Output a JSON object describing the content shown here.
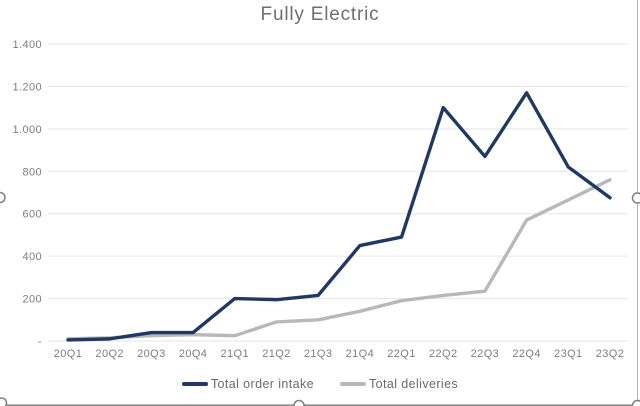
{
  "chart_data": {
    "type": "line",
    "title": "Fully Electric",
    "categories": [
      "20Q1",
      "20Q2",
      "20Q3",
      "20Q4",
      "21Q1",
      "21Q2",
      "21Q3",
      "21Q4",
      "22Q1",
      "22Q2",
      "22Q3",
      "22Q4",
      "23Q1",
      "23Q2"
    ],
    "series": [
      {
        "name": "Total order intake",
        "color": "#1f3864",
        "values": [
          5,
          10,
          40,
          40,
          200,
          195,
          215,
          450,
          490,
          1100,
          870,
          1170,
          820,
          675
        ]
      },
      {
        "name": "Total deliveries",
        "color": "#b8b8b8",
        "values": [
          10,
          15,
          25,
          30,
          25,
          90,
          100,
          140,
          190,
          215,
          235,
          570,
          665,
          760
        ]
      }
    ],
    "y_axis": {
      "min": 0,
      "max": 1400,
      "step": 200,
      "tick_labels": [
        "-",
        "200",
        "400",
        "600",
        "800",
        "1.000",
        "1.200",
        "1.400"
      ]
    },
    "x_axis_label": "",
    "y_axis_label": "",
    "grid": true,
    "legend_position": "bottom",
    "gridline_color": "#e5e5e5",
    "tick_text_color": "#7d7d7d",
    "title_color": "#6f6f6f"
  },
  "selection": {
    "state": "chart object selected",
    "handle_color": "#808080",
    "border_bottom_color": "#8c8c8c",
    "border_right_color": "#b0b0b0"
  }
}
